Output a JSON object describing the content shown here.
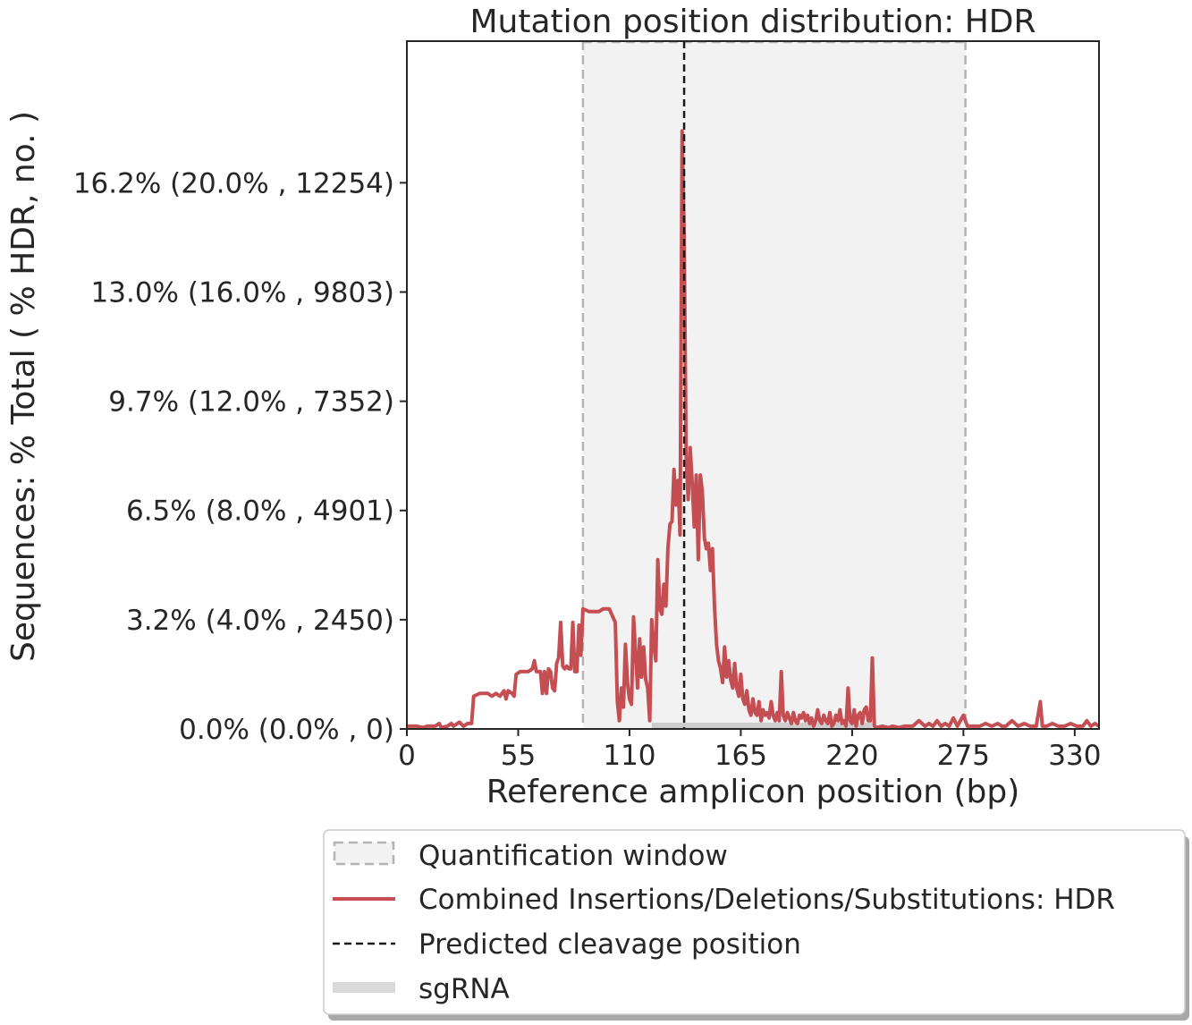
{
  "chart_data": {
    "type": "line",
    "title": "Mutation position distribution: HDR",
    "xlabel": "Reference amplicon position (bp)",
    "ylabel": "Sequences: % Total ( % HDR, no. )",
    "xlim": [
      0,
      342
    ],
    "ylim": [
      0,
      21.9
    ],
    "x_ticks": [
      0,
      55,
      110,
      165,
      220,
      275,
      330
    ],
    "y_ticks": [
      {
        "value": 0,
        "label": "0.0% (0.0% , 0)"
      },
      {
        "value": 4,
        "label": "3.2% (4.0% , 2450)"
      },
      {
        "value": 8,
        "label": "6.5% (8.0% , 4901)"
      },
      {
        "value": 12,
        "label": "9.7% (12.0% , 7352)"
      },
      {
        "value": 16,
        "label": "13.0% (16.0% , 9803)"
      },
      {
        "value": 20,
        "label": "16.2% (20.0% , 12254)"
      }
    ],
    "quantification_window": [
      87,
      276
    ],
    "cleavage_position": 137,
    "sgrna": [
      121,
      230
    ],
    "series": [
      {
        "name": "Combined Insertions/Deletions/Substitutions: HDR",
        "color": "#c44e52",
        "points": [
          [
            0,
            0.1
          ],
          [
            5,
            0.1
          ],
          [
            8,
            0.05
          ],
          [
            10,
            0.1
          ],
          [
            14,
            0.1
          ],
          [
            16,
            0.2
          ],
          [
            17,
            0.05
          ],
          [
            20,
            0.1
          ],
          [
            22,
            0.2
          ],
          [
            23,
            0.1
          ],
          [
            26,
            0.25
          ],
          [
            28,
            0.1
          ],
          [
            30,
            0.2
          ],
          [
            32,
            0.2
          ],
          [
            33,
            1.2
          ],
          [
            36,
            1.3
          ],
          [
            40,
            1.3
          ],
          [
            42,
            1.2
          ],
          [
            44,
            1.3
          ],
          [
            46,
            1.2
          ],
          [
            48,
            1.4
          ],
          [
            49,
            1.1
          ],
          [
            50,
            1.4
          ],
          [
            52,
            1.3
          ],
          [
            53,
            1.2
          ],
          [
            54,
            2.0
          ],
          [
            56,
            2.1
          ],
          [
            58,
            2.1
          ],
          [
            60,
            2.1
          ],
          [
            62,
            2.2
          ],
          [
            63,
            2.5
          ],
          [
            64,
            2.1
          ],
          [
            66,
            2.1
          ],
          [
            67,
            1.3
          ],
          [
            68,
            2.1
          ],
          [
            69,
            1.3
          ],
          [
            70,
            2.2
          ],
          [
            71,
            2.1
          ],
          [
            72,
            1.5
          ],
          [
            73,
            1.4
          ],
          [
            74,
            2.4
          ],
          [
            75,
            2.6
          ],
          [
            76,
            3.9
          ],
          [
            77,
            2.3
          ],
          [
            78,
            2.2
          ],
          [
            79,
            2.3
          ],
          [
            80,
            2.2
          ],
          [
            81,
            2.2
          ],
          [
            82,
            3.9
          ],
          [
            83,
            2.1
          ],
          [
            84,
            2.1
          ],
          [
            85,
            3.8
          ],
          [
            86,
            2.7
          ],
          [
            87,
            4.4
          ],
          [
            90,
            4.3
          ],
          [
            92,
            4.3
          ],
          [
            95,
            4.3
          ],
          [
            97,
            4.4
          ],
          [
            100,
            4.4
          ],
          [
            103,
            3.9
          ],
          [
            104,
            1.0
          ],
          [
            105,
            0.3
          ],
          [
            106,
            1.5
          ],
          [
            107,
            0.8
          ],
          [
            108,
            3.1
          ],
          [
            109,
            1.7
          ],
          [
            110,
            1.1
          ],
          [
            111,
            0.9
          ],
          [
            112,
            4.1
          ],
          [
            113,
            2.8
          ],
          [
            114,
            1.5
          ],
          [
            115,
            3.3
          ],
          [
            116,
            1.9
          ],
          [
            117,
            3.0
          ],
          [
            118,
            1.8
          ],
          [
            119,
            1.5
          ],
          [
            120,
            0.3
          ],
          [
            121,
            4.0
          ],
          [
            122,
            3.1
          ],
          [
            123,
            2.5
          ],
          [
            124,
            6.2
          ],
          [
            125,
            4.4
          ],
          [
            126,
            4.2
          ],
          [
            127,
            5.3
          ],
          [
            128,
            4.5
          ],
          [
            129,
            6.6
          ],
          [
            130,
            7.5
          ],
          [
            131,
            7.6
          ],
          [
            132,
            9.5
          ],
          [
            133,
            8.2
          ],
          [
            134,
            9.1
          ],
          [
            135,
            7.1
          ],
          [
            136,
            21.9
          ],
          [
            137,
            18.0
          ],
          [
            138,
            10.0
          ],
          [
            139,
            8.4
          ],
          [
            140,
            10.3
          ],
          [
            141,
            9.0
          ],
          [
            142,
            7.4
          ],
          [
            143,
            9.3
          ],
          [
            144,
            6.2
          ],
          [
            145,
            9.3
          ],
          [
            146,
            8.7
          ],
          [
            147,
            7.0
          ],
          [
            148,
            6.6
          ],
          [
            149,
            6.8
          ],
          [
            150,
            5.8
          ],
          [
            151,
            6.6
          ],
          [
            152,
            4.5
          ],
          [
            153,
            3.1
          ],
          [
            154,
            2.5
          ],
          [
            155,
            2.2
          ],
          [
            156,
            1.7
          ],
          [
            157,
            3.0
          ],
          [
            158,
            1.9
          ],
          [
            159,
            2.5
          ],
          [
            160,
            1.8
          ],
          [
            161,
            1.5
          ],
          [
            162,
            2.4
          ],
          [
            163,
            1.5
          ],
          [
            164,
            1.2
          ],
          [
            165,
            2.0
          ],
          [
            166,
            1.1
          ],
          [
            167,
            0.9
          ],
          [
            168,
            1.4
          ],
          [
            169,
            0.7
          ],
          [
            170,
            0.5
          ],
          [
            171,
            1.1
          ],
          [
            172,
            0.6
          ],
          [
            173,
            0.5
          ],
          [
            174,
            1.0
          ],
          [
            175,
            0.3
          ],
          [
            176,
            0.7
          ],
          [
            177,
            0.5
          ],
          [
            178,
            0.6
          ],
          [
            179,
            0.4
          ],
          [
            180,
            1.0
          ],
          [
            181,
            0.5
          ],
          [
            182,
            0.3
          ],
          [
            183,
            0.6
          ],
          [
            184,
            0.3
          ],
          [
            185,
            2.1
          ],
          [
            186,
            0.5
          ],
          [
            187,
            0.3
          ],
          [
            188,
            0.6
          ],
          [
            189,
            0.4
          ],
          [
            190,
            0.2
          ],
          [
            191,
            0.6
          ],
          [
            192,
            0.3
          ],
          [
            193,
            0.2
          ],
          [
            194,
            0.5
          ],
          [
            195,
            0.4
          ],
          [
            196,
            0.6
          ],
          [
            197,
            0.3
          ],
          [
            198,
            0.5
          ],
          [
            199,
            0.2
          ],
          [
            200,
            0.4
          ],
          [
            201,
            0.1
          ],
          [
            202,
            0.3
          ],
          [
            203,
            0.7
          ],
          [
            204,
            0.3
          ],
          [
            205,
            0.2
          ],
          [
            206,
            0.5
          ],
          [
            207,
            0.3
          ],
          [
            208,
            0.2
          ],
          [
            209,
            0.6
          ],
          [
            210,
            0.1
          ],
          [
            211,
            0.2
          ],
          [
            212,
            0.5
          ],
          [
            213,
            0.3
          ],
          [
            214,
            0.7
          ],
          [
            215,
            0.2
          ],
          [
            216,
            0.3
          ],
          [
            217,
            0.1
          ],
          [
            218,
            1.5
          ],
          [
            219,
            0.3
          ],
          [
            220,
            0.2
          ],
          [
            221,
            0.7
          ],
          [
            222,
            0.1
          ],
          [
            223,
            0.5
          ],
          [
            224,
            0.6
          ],
          [
            225,
            0.2
          ],
          [
            226,
            0.7
          ],
          [
            227,
            0.8
          ],
          [
            228,
            0.3
          ],
          [
            229,
            0.3
          ],
          [
            230,
            2.6
          ],
          [
            231,
            0.1
          ],
          [
            232,
            0.05
          ],
          [
            235,
            0.1
          ],
          [
            238,
            0.05
          ],
          [
            240,
            0.1
          ],
          [
            243,
            0.05
          ],
          [
            246,
            0.1
          ],
          [
            250,
            0.1
          ],
          [
            253,
            0.3
          ],
          [
            256,
            0.1
          ],
          [
            258,
            0.2
          ],
          [
            260,
            0.1
          ],
          [
            262,
            0.3
          ],
          [
            264,
            0.1
          ],
          [
            266,
            0.2
          ],
          [
            268,
            0.1
          ],
          [
            270,
            0.4
          ],
          [
            272,
            0.1
          ],
          [
            275,
            0.5
          ],
          [
            277,
            0.1
          ],
          [
            280,
            0.1
          ],
          [
            283,
            0.1
          ],
          [
            286,
            0.2
          ],
          [
            289,
            0.1
          ],
          [
            292,
            0.2
          ],
          [
            294,
            0.1
          ],
          [
            296,
            0.1
          ],
          [
            299,
            0.3
          ],
          [
            302,
            0.1
          ],
          [
            305,
            0.2
          ],
          [
            308,
            0.1
          ],
          [
            311,
            0.1
          ],
          [
            313,
            1.0
          ],
          [
            314,
            0.1
          ],
          [
            316,
            0.1
          ],
          [
            319,
            0.2
          ],
          [
            322,
            0.1
          ],
          [
            325,
            0.1
          ],
          [
            328,
            0.2
          ],
          [
            331,
            0.1
          ],
          [
            334,
            0.1
          ],
          [
            336,
            0.3
          ],
          [
            338,
            0.1
          ],
          [
            340,
            0.2
          ],
          [
            342,
            0.1
          ]
        ]
      }
    ],
    "legend": {
      "placement": "bottom-outside",
      "entries": [
        {
          "label": "Quantification window",
          "kind": "patch"
        },
        {
          "label": "Combined Insertions/Deletions/Substitutions: HDR",
          "kind": "line"
        },
        {
          "label": "Predicted cleavage position",
          "kind": "dashed"
        },
        {
          "label": "sgRNA",
          "kind": "band"
        }
      ]
    },
    "colors": {
      "line": "#c44e52",
      "window_fill": "#f2f2f2",
      "window_edge": "#b3b3b3",
      "cleavage": "#1a1a1a",
      "sgrna": "#cccccc",
      "text": "#262626"
    }
  }
}
